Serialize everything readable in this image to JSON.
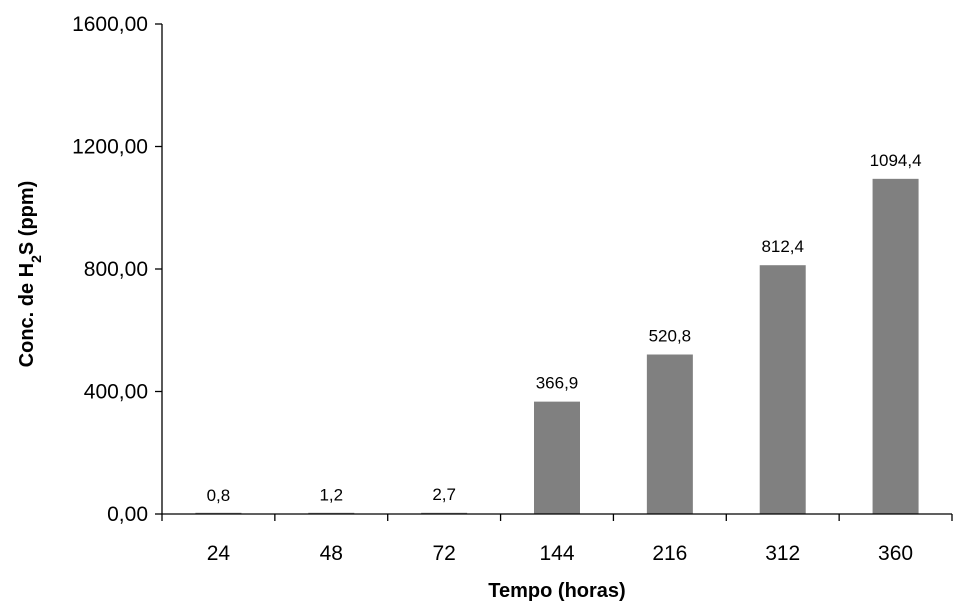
{
  "chart_data": {
    "type": "bar",
    "categories": [
      "24",
      "48",
      "72",
      "144",
      "216",
      "312",
      "360"
    ],
    "values": [
      0.8,
      1.2,
      2.7,
      366.9,
      520.8,
      812.4,
      1094.4
    ],
    "data_labels": [
      "0,8",
      "1,2",
      "2,7",
      "366,9",
      "520,8",
      "812,4",
      "1094,4"
    ],
    "title": "",
    "xlabel": "Tempo (horas)",
    "ylabel": {
      "pre": "Conc. de H",
      "sub": "2",
      "post": "S (ppm)"
    },
    "ylim": [
      0,
      1600
    ],
    "yticks": [
      0,
      400,
      800,
      1200,
      1600
    ],
    "ytick_labels": [
      "0,00",
      "400,00",
      "800,00",
      "1200,00",
      "1600,00"
    ],
    "grid": false,
    "legend": "none",
    "bar_color": "#808080"
  }
}
